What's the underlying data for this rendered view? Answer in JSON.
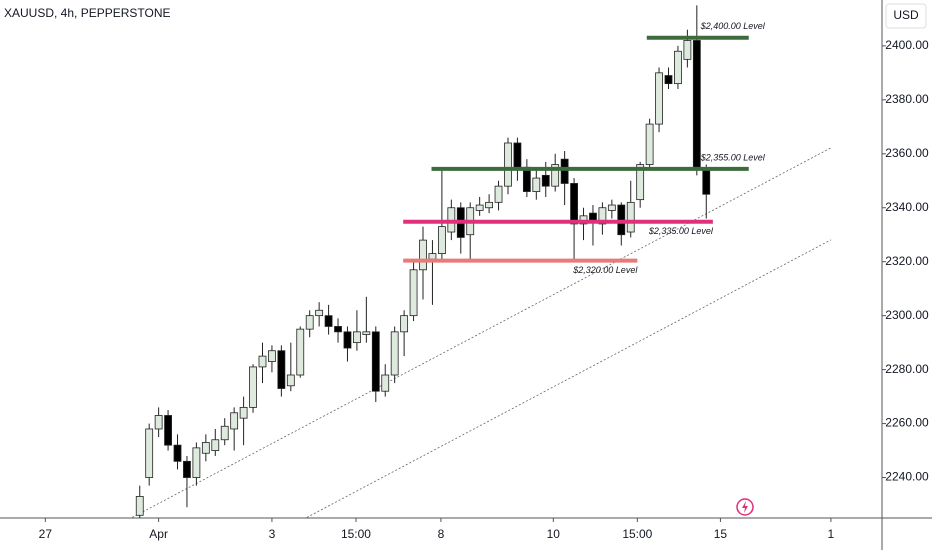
{
  "chart_data": {
    "type": "candlestick",
    "title": "XAUUSD, 4h, PEPPERSTONE",
    "currency": "USD",
    "x": [
      0,
      1,
      2,
      3,
      4,
      5,
      6,
      7,
      8,
      9,
      10,
      11,
      12,
      13,
      14,
      15,
      16,
      17,
      18,
      19,
      20,
      21,
      22,
      23,
      24,
      25,
      26,
      27,
      28,
      29,
      30,
      31,
      32,
      33,
      34,
      35,
      36,
      37,
      38,
      39,
      40,
      41,
      42,
      43,
      44,
      45,
      46,
      47,
      48,
      49,
      50,
      51,
      52,
      53,
      54,
      55,
      56,
      57,
      58,
      59,
      60
    ],
    "open": [
      2226,
      2240,
      2258,
      2263,
      2252,
      2246,
      2240,
      2249,
      2250,
      2254,
      2258,
      2262,
      2266,
      2281,
      2283,
      2287,
      2274,
      2278,
      2295,
      2300,
      2300,
      2296,
      2294,
      2290,
      2293,
      2294,
      2272,
      2278,
      2294,
      2300,
      2317,
      2321,
      2323,
      2331,
      2340,
      2330,
      2339,
      2340,
      2342,
      2348,
      2364,
      2355,
      2346,
      2352,
      2348,
      2358,
      2349,
      2334,
      2338,
      2334,
      2339,
      2341,
      2331,
      2343,
      2356,
      2371,
      2389,
      2386,
      2395,
      2402,
      2354
    ],
    "high": [
      2237,
      2260,
      2266,
      2265,
      2256,
      2248,
      2253,
      2256,
      2258,
      2262,
      2266,
      2270,
      2282,
      2290,
      2289,
      2289,
      2290,
      2296,
      2302,
      2305,
      2304,
      2299,
      2296,
      2302,
      2307,
      2296,
      2282,
      2296,
      2302,
      2320,
      2333,
      2328,
      2355,
      2343,
      2342,
      2342,
      2344,
      2345,
      2350,
      2366,
      2366,
      2358,
      2354,
      2357,
      2360,
      2361,
      2351,
      2340,
      2341,
      2342,
      2343,
      2342,
      2350,
      2357,
      2373,
      2392,
      2392,
      2400,
      2406,
      2415,
      2356
    ],
    "low": [
      2225,
      2237,
      2255,
      2250,
      2243,
      2229,
      2237,
      2246,
      2248,
      2252,
      2250,
      2252,
      2264,
      2275,
      2279,
      2270,
      2272,
      2277,
      2292,
      2296,
      2293,
      2290,
      2283,
      2287,
      2290,
      2268,
      2270,
      2275,
      2285,
      2298,
      2306,
      2304,
      2320,
      2328,
      2323,
      2320,
      2337,
      2338,
      2339,
      2345,
      2350,
      2344,
      2343,
      2344,
      2346,
      2341,
      2320,
      2328,
      2326,
      2330,
      2336,
      2326,
      2329,
      2340,
      2354,
      2368,
      2384,
      2384,
      2392,
      2352,
      2336
    ],
    "close": [
      2233,
      2258,
      2263,
      2252,
      2246,
      2240,
      2251,
      2253,
      2254,
      2259,
      2264,
      2266,
      2281,
      2285,
      2287,
      2273,
      2278,
      2295,
      2300,
      2302,
      2296,
      2294,
      2288,
      2294,
      2294,
      2272,
      2278,
      2294,
      2300,
      2317,
      2328,
      2323,
      2333,
      2340,
      2329,
      2340,
      2341,
      2342,
      2348,
      2364,
      2355,
      2346,
      2351,
      2348,
      2356,
      2349,
      2334,
      2337,
      2335,
      2340,
      2341,
      2330,
      2342,
      2356,
      2371,
      2390,
      2386,
      2398,
      2402,
      2355,
      2345
    ],
    "up_color": "#dfeadf",
    "down_color": "#000000",
    "xlim": [
      -14.8,
      78.4
    ],
    "xticks": [
      {
        "value": -10,
        "label": "27"
      },
      {
        "value": 2,
        "label": "Apr"
      },
      {
        "value": 14,
        "label": "3"
      },
      {
        "value": 22.9,
        "label": "15:00"
      },
      {
        "value": 31.9,
        "label": "8"
      },
      {
        "value": 43.8,
        "label": "10"
      },
      {
        "value": 52.7,
        "label": "15:00"
      },
      {
        "value": 61.5,
        "label": "15"
      },
      {
        "value": 73.2,
        "label": "1"
      }
    ],
    "ylim": [
      2225,
      2417
    ],
    "yticks": [
      {
        "value": 2240,
        "label": "2240.00"
      },
      {
        "value": 2260,
        "label": "2260.00"
      },
      {
        "value": 2280,
        "label": "2280.00"
      },
      {
        "value": 2300,
        "label": "2300.00"
      },
      {
        "value": 2320,
        "label": "2320.00"
      },
      {
        "value": 2340,
        "label": "2340.00"
      },
      {
        "value": 2360,
        "label": "2360.00"
      },
      {
        "value": 2380,
        "label": "2380.00"
      },
      {
        "value": 2400,
        "label": "2400.00"
      }
    ],
    "grid": false,
    "levels": [
      {
        "text": "$2,400.00 Level",
        "y": 2403,
        "x0": 53.7,
        "x1": 64.5,
        "color": "#3d6b3d",
        "text_color": "#555555"
      },
      {
        "text": "$2,355.00 Level",
        "y": 2354.4,
        "x0": 30.9,
        "x1": 64.5,
        "color": "#3d6b3d",
        "text_color": "#555555"
      },
      {
        "text": "$2,335.00 Level",
        "y": 2334.8,
        "x0": 27.9,
        "x1": 60.7,
        "color": "#e0307a",
        "text_color": "#d0206a"
      },
      {
        "text": "$2,320.00 Level",
        "y": 2320.4,
        "x0": 27.9,
        "x1": 52.7,
        "color": "#e87a7a",
        "text_color": "#555555"
      }
    ],
    "trendlines": [
      {
        "x": [
          -0.8,
          73.2
        ],
        "y": [
          2225.2,
          2362.2
        ]
      },
      {
        "x": [
          17.7,
          73.2
        ],
        "y": [
          2225.2,
          2328.1
        ]
      }
    ]
  }
}
